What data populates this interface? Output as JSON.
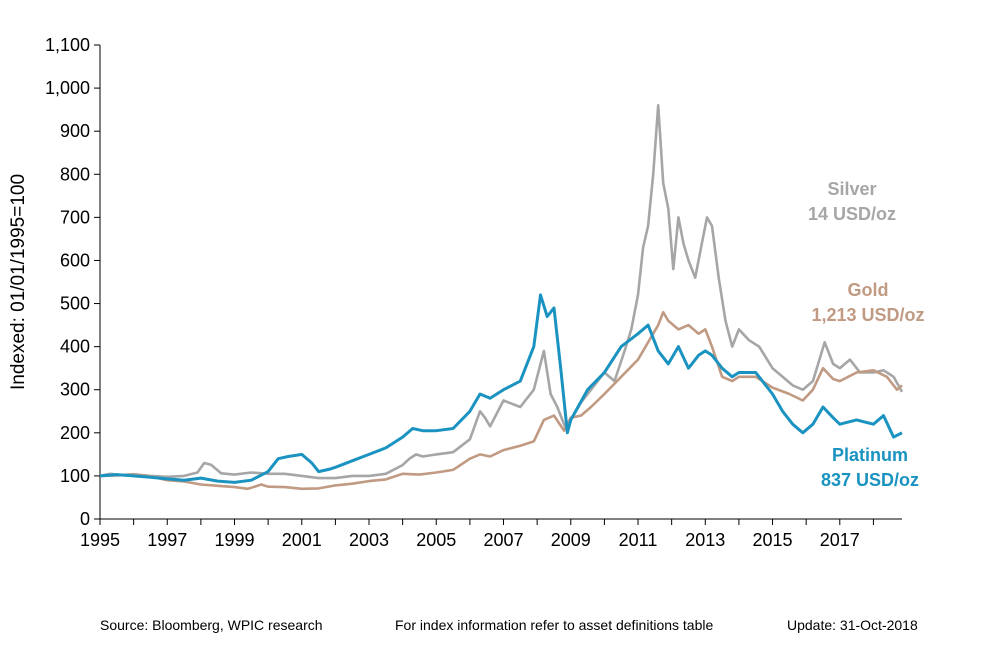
{
  "chart_data": {
    "type": "line",
    "title": "",
    "xlabel": "",
    "ylabel": "Indexed: 01/01/1995=100",
    "xlim": [
      1995,
      2018.85
    ],
    "ylim": [
      0,
      1100
    ],
    "x_ticks": [
      "1995",
      "1997",
      "1999",
      "2001",
      "2003",
      "2005",
      "2007",
      "2009",
      "2011",
      "2013",
      "2015",
      "2017"
    ],
    "y_ticks": [
      "0",
      "100",
      "200",
      "300",
      "400",
      "500",
      "600",
      "700",
      "800",
      "900",
      "1,000",
      "1,100"
    ],
    "grid": false,
    "legend": "inline-labels",
    "series": [
      {
        "name": "Silver",
        "annotation": "14 USD/oz",
        "color": "#a6a6a6",
        "x": [
          1995,
          1995.3,
          1995.6,
          1996,
          1996.5,
          1997,
          1997.5,
          1997.9,
          1998.1,
          1998.3,
          1998.6,
          1999,
          1999.5,
          2000,
          2000.5,
          2001,
          2001.5,
          2002,
          2002.5,
          2003,
          2003.5,
          2004,
          2004.2,
          2004.4,
          2004.6,
          2005,
          2005.5,
          2006,
          2006.3,
          2006.45,
          2006.6,
          2007,
          2007.5,
          2007.9,
          2008.2,
          2008.4,
          2008.6,
          2008.85,
          2009,
          2009.3,
          2009.6,
          2010,
          2010.3,
          2010.6,
          2010.8,
          2011,
          2011.15,
          2011.3,
          2011.45,
          2011.6,
          2011.75,
          2011.9,
          2012.05,
          2012.2,
          2012.35,
          2012.5,
          2012.7,
          2012.9,
          2013.05,
          2013.2,
          2013.4,
          2013.6,
          2013.8,
          2014,
          2014.3,
          2014.6,
          2015,
          2015.3,
          2015.6,
          2015.9,
          2016.2,
          2016.55,
          2016.8,
          2017,
          2017.3,
          2017.6,
          2018,
          2018.3,
          2018.6,
          2018.85
        ],
        "values": [
          100,
          105,
          102,
          104,
          100,
          98,
          100,
          108,
          130,
          126,
          106,
          103,
          108,
          105,
          105,
          100,
          95,
          95,
          100,
          100,
          105,
          125,
          140,
          150,
          145,
          150,
          155,
          185,
          250,
          235,
          215,
          275,
          260,
          300,
          390,
          290,
          260,
          210,
          230,
          270,
          300,
          340,
          320,
          390,
          440,
          520,
          630,
          680,
          800,
          960,
          780,
          720,
          580,
          700,
          640,
          600,
          560,
          640,
          700,
          680,
          560,
          460,
          400,
          440,
          415,
          400,
          350,
          330,
          310,
          300,
          320,
          410,
          360,
          350,
          370,
          340,
          340,
          345,
          330,
          295
        ]
      },
      {
        "name": "Gold",
        "annotation": "1,213 USD/oz",
        "color": "#c09a82",
        "x": [
          1995,
          1995.5,
          1996,
          1996.5,
          1997,
          1997.5,
          1998,
          1998.5,
          1999,
          1999.4,
          1999.8,
          2000,
          2000.5,
          2001,
          2001.5,
          2002,
          2002.5,
          2003,
          2003.5,
          2004,
          2004.5,
          2005,
          2005.5,
          2006,
          2006.3,
          2006.6,
          2007,
          2007.5,
          2007.9,
          2008.2,
          2008.5,
          2008.8,
          2009,
          2009.3,
          2009.6,
          2010,
          2010.5,
          2011,
          2011.3,
          2011.6,
          2011.75,
          2011.9,
          2012.2,
          2012.5,
          2012.8,
          2013,
          2013.2,
          2013.5,
          2013.8,
          2014,
          2014.5,
          2015,
          2015.5,
          2015.9,
          2016.2,
          2016.5,
          2016.8,
          2017,
          2017.5,
          2018,
          2018.4,
          2018.7,
          2018.85
        ],
        "values": [
          100,
          101,
          103,
          99,
          90,
          87,
          80,
          77,
          74,
          70,
          80,
          75,
          74,
          70,
          71,
          78,
          82,
          88,
          92,
          105,
          103,
          108,
          114,
          140,
          150,
          145,
          160,
          170,
          180,
          230,
          240,
          205,
          235,
          240,
          260,
          290,
          330,
          370,
          410,
          450,
          480,
          460,
          440,
          450,
          430,
          440,
          400,
          330,
          320,
          330,
          330,
          305,
          290,
          275,
          300,
          350,
          325,
          320,
          340,
          345,
          330,
          300,
          310
        ]
      },
      {
        "name": "Platinum",
        "annotation": "837 USD/oz",
        "color": "#1a93c1",
        "x": [
          1995,
          1995.5,
          1996,
          1996.5,
          1997,
          1997.5,
          1998,
          1998.5,
          1999,
          1999.5,
          2000,
          2000.3,
          2000.6,
          2001,
          2001.3,
          2001.5,
          2001.8,
          2002,
          2002.5,
          2003,
          2003.5,
          2004,
          2004.3,
          2004.6,
          2005,
          2005.5,
          2006,
          2006.3,
          2006.6,
          2007,
          2007.5,
          2007.9,
          2008.1,
          2008.3,
          2008.5,
          2008.7,
          2008.9,
          2009,
          2009.5,
          2010,
          2010.5,
          2011,
          2011.3,
          2011.6,
          2011.9,
          2012.2,
          2012.5,
          2012.8,
          2013,
          2013.2,
          2013.5,
          2013.8,
          2014,
          2014.5,
          2015,
          2015.3,
          2015.6,
          2015.9,
          2016.2,
          2016.5,
          2016.8,
          2017,
          2017.5,
          2018,
          2018.3,
          2018.6,
          2018.85
        ],
        "values": [
          100,
          103,
          100,
          97,
          93,
          90,
          95,
          88,
          85,
          90,
          110,
          140,
          145,
          150,
          130,
          110,
          115,
          120,
          135,
          150,
          165,
          190,
          210,
          205,
          205,
          210,
          250,
          290,
          280,
          300,
          320,
          400,
          520,
          470,
          490,
          350,
          200,
          230,
          300,
          340,
          400,
          430,
          450,
          390,
          360,
          400,
          350,
          380,
          390,
          380,
          350,
          330,
          340,
          340,
          290,
          250,
          220,
          200,
          220,
          260,
          235,
          220,
          230,
          220,
          240,
          190,
          200
        ]
      }
    ],
    "labels": {
      "silver_name": "Silver",
      "silver_price": "14 USD/oz",
      "gold_name": "Gold",
      "gold_price": "1,213 USD/oz",
      "platinum_name": "Platinum",
      "platinum_price": "837 USD/oz"
    }
  },
  "footer": {
    "source": "Source: Bloomberg, WPIC research",
    "note": "For index information refer to asset definitions table",
    "update": "Update: 31-Oct-2018"
  }
}
